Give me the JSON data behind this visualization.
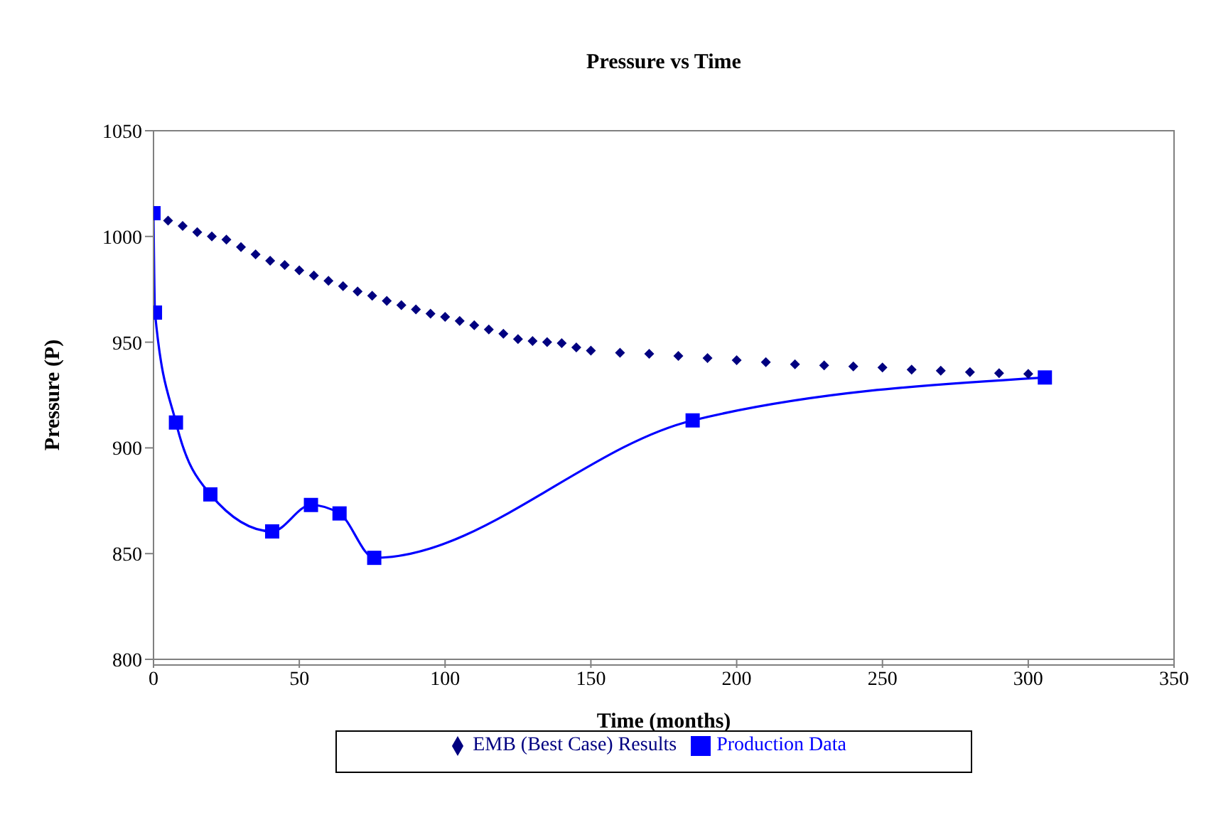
{
  "chart_data": {
    "type": "line",
    "title": "Pressure vs Time",
    "xlabel": "Time (months)",
    "ylabel": "Pressure (P)",
    "xlim": [
      0,
      350
    ],
    "xticks": [
      0,
      50,
      100,
      150,
      200,
      250,
      300,
      350
    ],
    "ylim": [
      800,
      1050
    ],
    "yticks": [
      800,
      850,
      900,
      950,
      1000,
      1050
    ],
    "legend": "bottom",
    "series": [
      {
        "name": "EMB (Best Case) Results",
        "type": "scatter",
        "marker": "diamond",
        "color": "#000080",
        "x": [
          5,
          10,
          15,
          20,
          25,
          30,
          35,
          40,
          45,
          50,
          55,
          60,
          65,
          70,
          75,
          80,
          85,
          90,
          95,
          100,
          105,
          110,
          115,
          120,
          125,
          130,
          135,
          140,
          145,
          150,
          160,
          170,
          180,
          190,
          200,
          210,
          220,
          230,
          240,
          250,
          260,
          270,
          280,
          290,
          300
        ],
        "values": [
          1007.5,
          1005,
          1002,
          1000,
          998.5,
          995,
          991.5,
          988.5,
          986.5,
          984,
          981.5,
          979,
          976.5,
          974,
          972,
          969.5,
          967.5,
          965.5,
          963.5,
          962,
          960,
          958,
          956,
          954,
          951.5,
          950.5,
          950,
          949.5,
          947.5,
          946,
          945,
          944.5,
          943.5,
          942.5,
          941.5,
          940.5,
          939.5,
          939,
          938.5,
          938,
          937,
          936.5,
          935.8,
          935.3,
          935
        ]
      },
      {
        "name": "Production Data",
        "marker": "square",
        "color": "#0000ff",
        "x": [
          0,
          0.5,
          7.7,
          19.5,
          40.7,
          54,
          63.8,
          75.7,
          184.9,
          305.7
        ],
        "values": [
          1011,
          964,
          912,
          878,
          860.5,
          873,
          869,
          848,
          913,
          933.3
        ]
      }
    ]
  }
}
